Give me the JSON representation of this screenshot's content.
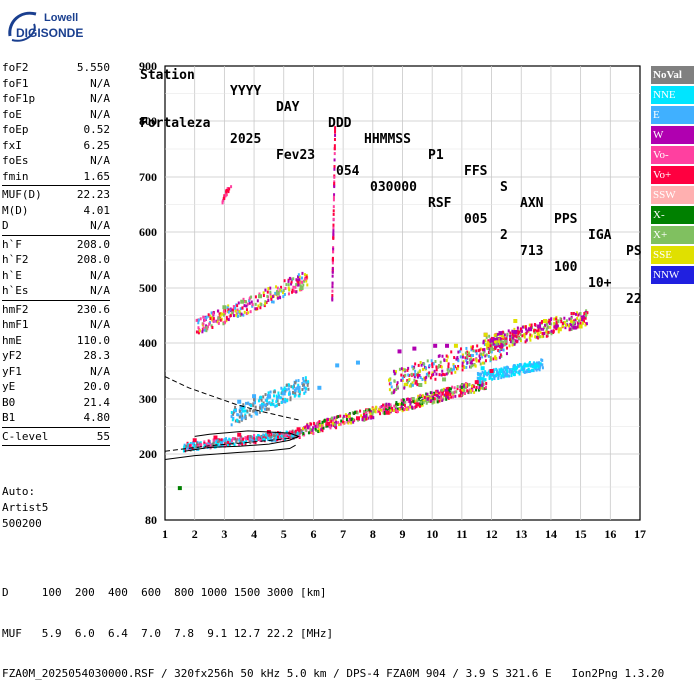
{
  "logo": {
    "line1": "Lowell",
    "line2": "DIGISONDE",
    "brand_color": "#1a3f8f"
  },
  "header": {
    "labels": [
      "Station",
      "YYYY",
      "DAY",
      "DDD",
      "HHMMSS",
      "P1",
      "FFS",
      "S",
      "AXN",
      "PPS",
      "IGA",
      "PS"
    ],
    "values": [
      "Fortaleza",
      "2025",
      "Fev23",
      "054",
      "030000",
      "RSF",
      "005",
      "2",
      "713",
      "100",
      "10+",
      "22"
    ]
  },
  "params": {
    "group1": [
      {
        "name": "foF2",
        "value": "5.550"
      },
      {
        "name": "foF1",
        "value": "N/A"
      },
      {
        "name": "foF1p",
        "value": "N/A"
      },
      {
        "name": "foE",
        "value": "N/A"
      },
      {
        "name": "foEp",
        "value": "0.52"
      },
      {
        "name": "fxI",
        "value": "6.25"
      },
      {
        "name": "foEs",
        "value": "N/A"
      },
      {
        "name": "fmin",
        "value": "1.65"
      }
    ],
    "group2": [
      {
        "name": "MUF(D)",
        "value": "22.23"
      },
      {
        "name": "M(D)",
        "value": "4.01"
      },
      {
        "name": "D",
        "value": "N/A"
      }
    ],
    "group3": [
      {
        "name": "h`F",
        "value": "208.0"
      },
      {
        "name": "h`F2",
        "value": "208.0"
      },
      {
        "name": "h`E",
        "value": "N/A"
      },
      {
        "name": "h`Es",
        "value": "N/A"
      }
    ],
    "group4": [
      {
        "name": "hmF2",
        "value": "230.6"
      },
      {
        "name": "hmF1",
        "value": "N/A"
      },
      {
        "name": "hmE",
        "value": "110.0"
      },
      {
        "name": "yF2",
        "value": "28.3"
      },
      {
        "name": "yF1",
        "value": "N/A"
      },
      {
        "name": "yE",
        "value": "20.0"
      },
      {
        "name": "B0",
        "value": "21.4"
      },
      {
        "name": "B1",
        "value": "4.80"
      }
    ],
    "group5": [
      {
        "name": "C-level",
        "value": "55"
      }
    ]
  },
  "auto": {
    "line1": "Auto:",
    "line2": "Artist5",
    "line3": "500200"
  },
  "legend": [
    {
      "label": "NoVal",
      "color": "#808080"
    },
    {
      "label": "NNE",
      "color": "#00e5ff"
    },
    {
      "label": "E",
      "color": "#40b0ff"
    },
    {
      "label": "W",
      "color": "#b000b0"
    },
    {
      "label": "Vo-",
      "color": "#ff40a0"
    },
    {
      "label": "Vo+",
      "color": "#ff0040"
    },
    {
      "label": "SSW",
      "color": "#ffb0b0"
    },
    {
      "label": "X-",
      "color": "#008000"
    },
    {
      "label": "X+",
      "color": "#80c060"
    },
    {
      "label": "SSE",
      "color": "#e0e000"
    },
    {
      "label": "NNW",
      "color": "#2020e0"
    }
  ],
  "footer": {
    "line1": "D     100  200  400  600  800 1000 1500 3000 [km]",
    "line2": "MUF   5.9  6.0  6.4  7.0  7.8  9.1 12.7 22.2 [MHz]",
    "line3": "FZA0M_2025054030000.RSF / 320fx256h 50 kHz 5.0 km / DPS-4 FZA0M 904 / 3.9 S 321.6 E   Ion2Png 1.3.20"
  },
  "chart_data": {
    "type": "scatter",
    "title": "",
    "xlabel": "",
    "ylabel": "",
    "xlim": [
      1,
      17
    ],
    "ylim": [
      80,
      900
    ],
    "x_ticks": [
      "1",
      "2",
      "3",
      "4",
      "5",
      "6",
      "7",
      "8",
      "9",
      "10",
      "11",
      "12",
      "13",
      "14",
      "15",
      "16",
      "17"
    ],
    "y_ticks": [
      "80",
      "200",
      "300",
      "400",
      "500",
      "600",
      "700",
      "800",
      "900"
    ],
    "y_tick_values": [
      80,
      200,
      300,
      400,
      500,
      600,
      700,
      800,
      900
    ],
    "grid": true,
    "legend_position": "right",
    "series": [
      {
        "name": "W",
        "color": "#b000b0",
        "points": [
          [
            8.9,
            385
          ],
          [
            9.4,
            390
          ],
          [
            10.1,
            395
          ],
          [
            10.5,
            395
          ],
          [
            11.8,
            415
          ],
          [
            12.3,
            418
          ],
          [
            12.8,
            420
          ],
          [
            13.3,
            425
          ],
          [
            13.6,
            430
          ],
          [
            14.2,
            430
          ],
          [
            14.8,
            428
          ]
        ]
      },
      {
        "name": "NNE",
        "color": "#00e5ff",
        "points": [
          [
            11.7,
            355
          ],
          [
            12.3,
            350
          ],
          [
            12.8,
            355
          ],
          [
            13.2,
            360
          ],
          [
            13.5,
            360
          ]
        ]
      },
      {
        "name": "E",
        "color": "#40b0ff",
        "points": [
          [
            3.5,
            295
          ],
          [
            4.0,
            305
          ],
          [
            4.5,
            305
          ],
          [
            5.0,
            310
          ],
          [
            5.5,
            320
          ],
          [
            6.2,
            320
          ],
          [
            6.8,
            360
          ],
          [
            7.5,
            365
          ]
        ]
      },
      {
        "name": "Vo+",
        "color": "#ff0040",
        "points": [
          [
            2.0,
            225
          ],
          [
            2.7,
            230
          ],
          [
            3.5,
            235
          ],
          [
            4.5,
            240
          ],
          [
            5.5,
            245
          ],
          [
            6.5,
            255
          ],
          [
            7.5,
            265
          ],
          [
            8.5,
            275
          ],
          [
            9.5,
            290
          ],
          [
            10.5,
            310
          ],
          [
            11.5,
            330
          ],
          [
            12.0,
            350
          ]
        ]
      },
      {
        "name": "SSE",
        "color": "#e0e000",
        "points": [
          [
            10.8,
            395
          ],
          [
            11.8,
            415
          ],
          [
            12.8,
            440
          ],
          [
            13.8,
            440
          ],
          [
            14.3,
            425
          ],
          [
            15.0,
            430
          ]
        ]
      },
      {
        "name": "X+",
        "color": "#80c060",
        "points": [
          [
            3.0,
            465
          ],
          [
            3.6,
            475
          ],
          [
            4.2,
            485
          ],
          [
            4.8,
            490
          ],
          [
            5.6,
            500
          ],
          [
            9.6,
            325
          ],
          [
            10.4,
            335
          ]
        ]
      },
      {
        "name": "X-",
        "color": "#008000",
        "points": [
          [
            1.5,
            138
          ]
        ]
      }
    ]
  }
}
